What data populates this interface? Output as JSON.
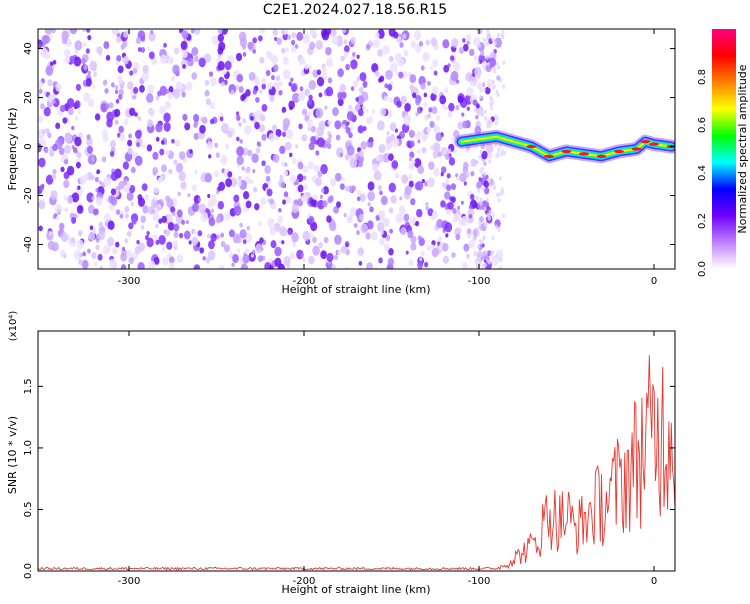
{
  "title": "C2E1.2024.027.18.56.R15",
  "chart_data": [
    {
      "type": "heatmap",
      "xlabel": "Height of straight line (km)",
      "ylabel": "Frequency (Hz)",
      "xlim": [
        -352,
        12
      ],
      "ylim": [
        -50,
        48
      ],
      "xticks": [
        -300,
        -200,
        -100,
        0
      ],
      "xtick_labels": [
        "-300",
        "-200",
        "-100",
        "0"
      ],
      "yticks": [
        -40,
        -20,
        0,
        20,
        40
      ],
      "ytick_labels": [
        "-40",
        "-20",
        "0",
        "20",
        "40"
      ],
      "noise_region_x": [
        -352,
        -88
      ],
      "signal_track": {
        "x": [
          -110,
          -100,
          -90,
          -80,
          -70,
          -60,
          -50,
          -40,
          -30,
          -20,
          -10,
          -5,
          0,
          10
        ],
        "y": [
          2,
          3,
          4,
          2,
          0,
          -4,
          -2,
          -3,
          -4,
          -2,
          -1,
          2,
          1,
          0
        ]
      },
      "colorbar": {
        "label": "Normalized spectral amplitude",
        "range": [
          0,
          1
        ],
        "ticks": [
          0.0,
          0.2,
          0.4,
          0.6,
          0.8
        ],
        "tick_labels": [
          "0.0",
          "0.2",
          "0.4",
          "0.6",
          "0.8"
        ],
        "colors": [
          "#ffffff",
          "#c080ff",
          "#7000ff",
          "#0000ff",
          "#00ffff",
          "#00ff00",
          "#ffff00",
          "#ff8000",
          "#ff0000",
          "#ff0080"
        ]
      }
    },
    {
      "type": "line",
      "xlabel": "Height of straight line (km)",
      "ylabel": "SNR (10 * v/v)",
      "scale_label": "(x10⁴)",
      "xlim": [
        -352,
        12
      ],
      "ylim": [
        0,
        1.95
      ],
      "xticks": [
        -300,
        -200,
        -100,
        0
      ],
      "xtick_labels": [
        "-300",
        "-200",
        "-100",
        "0"
      ],
      "yticks": [
        0.0,
        0.5,
        1.0,
        1.5
      ],
      "ytick_labels": [
        "0.0",
        "0.5",
        "1.0",
        "1.5"
      ],
      "series": [
        {
          "color": "#e8362f",
          "x": [
            -352,
            -100,
            -90,
            -85,
            -80,
            -75,
            -70,
            -65,
            -60,
            -55,
            -50,
            -45,
            -40,
            -35,
            -30,
            -25,
            -20,
            -15,
            -10,
            -5,
            0,
            5,
            10
          ],
          "y": [
            0.02,
            0.02,
            0.02,
            0.05,
            0.1,
            0.15,
            0.2,
            0.3,
            0.5,
            0.4,
            0.45,
            0.35,
            0.4,
            0.5,
            0.55,
            0.6,
            0.7,
            0.8,
            0.9,
            1.05,
            1.1,
            1.15,
            1.2
          ]
        }
      ]
    }
  ]
}
